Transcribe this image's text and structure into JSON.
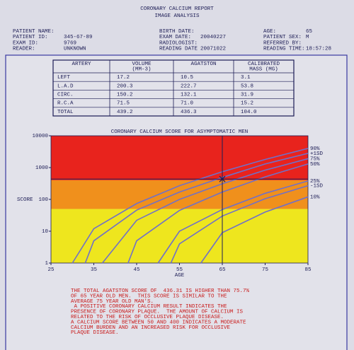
{
  "header": {
    "title": "CORONARY CALCIUM REPORT",
    "subtitle": "IMAGE ANALYSIS"
  },
  "info": [
    [
      {
        "label": "PATIENT NAME:",
        "value": null
      },
      {
        "label": "PATIENT ID:",
        "value": "345-67-89"
      },
      {
        "label": "EXAM ID:",
        "value": "9769"
      },
      {
        "label": "READER:",
        "value": "UNKNOWN"
      }
    ],
    [
      {
        "label": "BIRTH DATE:",
        "value": null
      },
      {
        "label": "EXAM DATE:",
        "value": "20040227"
      },
      {
        "label": "RADIOLOGIST:",
        "value": null
      },
      {
        "label": "READING DATE",
        "value": "20071022"
      }
    ],
    [
      {
        "label": "AGE:",
        "value": "65"
      },
      {
        "label": "PATIENT SEX:",
        "value": "M"
      },
      {
        "label": "REFERRED BY:",
        "value": null
      },
      {
        "label": "READING TIME:",
        "value": "18:57:28"
      }
    ]
  ],
  "table": {
    "header": [
      [
        "ARTERY"
      ],
      [
        "VOLUME",
        "(MM-3)"
      ],
      [
        "AGATSTON"
      ],
      [
        "CALIBRATED",
        "MASS (MG)"
      ]
    ],
    "rows": [
      [
        "LEFT",
        "17.2",
        "10.5",
        "3.1"
      ],
      [
        "L.A.D",
        "200.3",
        "222.7",
        "53.8"
      ],
      [
        "CIRC.",
        "150.2",
        "132.1",
        "31.9"
      ],
      [
        "R.C.A",
        "71.5",
        "71.0",
        "15.2"
      ],
      [
        "TOTAL",
        "439.2",
        "436.3",
        "104.0"
      ]
    ]
  },
  "chart": {
    "type": "line",
    "title": "CORONARY CALCIUM SCORE FOR ASYMPTOMATIC MEN",
    "xlabel": "AGE",
    "ylabel": "SCORE",
    "log_y": true,
    "xlim": [
      25,
      85
    ],
    "xticks": [
      25,
      35,
      45,
      55,
      65,
      75,
      85
    ],
    "ylim": [
      1,
      10000
    ],
    "yticks": [
      1,
      10,
      100,
      1000,
      10000
    ],
    "bands": [
      {
        "from": 400,
        "to": 10000,
        "color": "#e8231d"
      },
      {
        "from": 50,
        "to": 400,
        "color": "#f0901c"
      },
      {
        "from": 1,
        "to": 50,
        "color": "#eee61e"
      }
    ],
    "line_color": "#7070c8",
    "series": [
      {
        "name": "90%",
        "x": [
          30,
          35,
          45,
          55,
          65,
          75,
          85
        ],
        "values": [
          1,
          12,
          74,
          270,
          740,
          1800,
          4000
        ]
      },
      {
        "name": "+1SD",
        "x": [
          33,
          35,
          45,
          55,
          65,
          75,
          85
        ],
        "values": [
          1,
          5,
          46,
          170,
          490,
          1300,
          2800
        ]
      },
      {
        "name": "75%",
        "x": [
          37,
          45,
          55,
          65,
          75,
          85
        ],
        "values": [
          1,
          22,
          100,
          310,
          830,
          1900
        ]
      },
      {
        "name": "50%",
        "x": [
          43,
          45,
          55,
          65,
          75,
          85
        ],
        "values": [
          1,
          5,
          45,
          170,
          510,
          1300
        ]
      },
      {
        "name": "25%",
        "x": [
          50,
          55,
          65,
          75,
          85
        ],
        "values": [
          1,
          10,
          48,
          155,
          380
        ]
      },
      {
        "name": "-1SD",
        "x": [
          53,
          55,
          65,
          75,
          85
        ],
        "values": [
          1,
          4,
          30,
          105,
          270
        ]
      },
      {
        "name": "10%",
        "x": [
          60,
          65,
          75,
          85
        ],
        "values": [
          1,
          9,
          40,
          120
        ]
      }
    ],
    "marker": {
      "x": 65,
      "y": 436.31
    }
  },
  "summary": [
    "THE TOTAL AGATSTON SCORE OF  436.31 IS HIGHER THAN 75.7%",
    "OF 65 YEAR OLD MEN.  THIS SCORE IS SIMILAR TO THE",
    "AVERAGE 75 YEAR OLD MAN'S.",
    " A POSITIVE CORONARY CALCIUM RESULT INDICATES THE",
    "PRESENCE OF CORONARY PLAQUE.  THE AMOUNT OF CALCIUM IS",
    "RELATED TO THE RISK OF OCCLUSIVE PLAQUE DISEASE.",
    "A CALCIUM SCORE BETWEEN 50 AND 400 INDICATES A MODERATE",
    "CALCIUM BURDEN AND AN INCREASED RISK FOR OCCLUSIVE",
    "PLAQUE DISEASE."
  ]
}
